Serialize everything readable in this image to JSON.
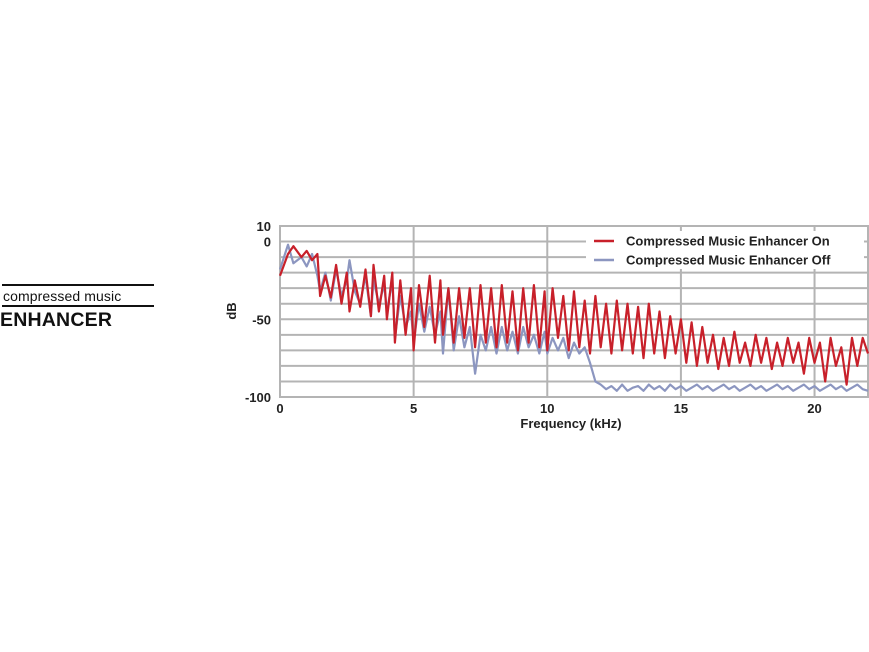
{
  "logo": {
    "line1": "compressed music",
    "line2": "ENHANCER"
  },
  "colors": {
    "on": "#c8202a",
    "off": "#8c96c0",
    "grid": "#b4b4b4"
  },
  "chart_data": {
    "type": "line",
    "title": "",
    "xlabel": "Frequency (kHz)",
    "ylabel": "dB",
    "xlim": [
      0,
      22
    ],
    "ylim": [
      -100,
      10
    ],
    "xticks": [
      0,
      5,
      10,
      15,
      20
    ],
    "yticks": [
      10,
      0,
      -50,
      -100
    ],
    "grid": true,
    "legend_position": "top-right",
    "series": [
      {
        "name": "Compressed Music Enhancer On",
        "color": "#c8202a",
        "x": [
          0,
          0.3,
          0.5,
          0.8,
          1.0,
          1.2,
          1.4,
          1.5,
          1.7,
          1.9,
          2.1,
          2.3,
          2.5,
          2.6,
          2.8,
          3.0,
          3.2,
          3.4,
          3.5,
          3.7,
          3.9,
          4.0,
          4.2,
          4.3,
          4.5,
          4.7,
          4.9,
          5.0,
          5.2,
          5.4,
          5.6,
          5.8,
          6.0,
          6.1,
          6.3,
          6.5,
          6.7,
          6.9,
          7.1,
          7.3,
          7.5,
          7.7,
          7.9,
          8.1,
          8.3,
          8.5,
          8.7,
          8.9,
          9.1,
          9.3,
          9.5,
          9.7,
          9.9,
          10.0,
          10.2,
          10.4,
          10.6,
          10.8,
          11.0,
          11.2,
          11.4,
          11.6,
          11.8,
          12.0,
          12.2,
          12.4,
          12.6,
          12.8,
          13.0,
          13.2,
          13.4,
          13.6,
          13.8,
          14.0,
          14.2,
          14.4,
          14.6,
          14.8,
          15.0,
          15.2,
          15.4,
          15.6,
          15.8,
          16.0,
          16.2,
          16.4,
          16.6,
          16.8,
          17.0,
          17.2,
          17.4,
          17.6,
          17.8,
          18.0,
          18.2,
          18.4,
          18.6,
          18.8,
          19.0,
          19.2,
          19.4,
          19.6,
          19.8,
          20.0,
          20.2,
          20.4,
          20.6,
          20.8,
          21.0,
          21.2,
          21.4,
          21.6,
          21.8,
          22.0
        ],
        "y": [
          -22,
          -8,
          -3,
          -10,
          -6,
          -12,
          -8,
          -35,
          -22,
          -36,
          -15,
          -40,
          -20,
          -45,
          -25,
          -42,
          -18,
          -48,
          -15,
          -45,
          -22,
          -50,
          -20,
          -65,
          -25,
          -60,
          -30,
          -70,
          -28,
          -55,
          -22,
          -65,
          -25,
          -60,
          -30,
          -65,
          -30,
          -62,
          -30,
          -68,
          -28,
          -65,
          -30,
          -68,
          -28,
          -65,
          -32,
          -70,
          -30,
          -65,
          -28,
          -68,
          -32,
          -70,
          -30,
          -62,
          -35,
          -70,
          -32,
          -68,
          -38,
          -72,
          -35,
          -68,
          -40,
          -72,
          -38,
          -70,
          -40,
          -72,
          -42,
          -75,
          -40,
          -72,
          -45,
          -75,
          -48,
          -72,
          -50,
          -78,
          -52,
          -80,
          -55,
          -78,
          -60,
          -82,
          -62,
          -80,
          -58,
          -78,
          -65,
          -80,
          -60,
          -78,
          -62,
          -82,
          -65,
          -80,
          -62,
          -78,
          -65,
          -85,
          -62,
          -78,
          -65,
          -90,
          -62,
          -80,
          -68,
          -92,
          -62,
          -80,
          -62,
          -72
        ]
      },
      {
        "name": "Compressed Music Enhancer Off",
        "color": "#8c96c0",
        "x": [
          0,
          0.3,
          0.5,
          0.8,
          1.0,
          1.2,
          1.4,
          1.5,
          1.7,
          1.9,
          2.1,
          2.3,
          2.5,
          2.6,
          2.8,
          3.0,
          3.2,
          3.4,
          3.5,
          3.7,
          3.9,
          4.0,
          4.2,
          4.3,
          4.5,
          4.7,
          4.9,
          5.0,
          5.2,
          5.4,
          5.6,
          5.8,
          6.0,
          6.1,
          6.3,
          6.5,
          6.7,
          6.9,
          7.1,
          7.3,
          7.5,
          7.7,
          7.9,
          8.1,
          8.3,
          8.5,
          8.7,
          8.9,
          9.1,
          9.3,
          9.5,
          9.7,
          9.9,
          10.0,
          10.2,
          10.4,
          10.6,
          10.8,
          11.0,
          11.2,
          11.4,
          11.6,
          11.8,
          12.0,
          12.2,
          12.4,
          12.6,
          12.8,
          13.0,
          13.2,
          13.4,
          13.6,
          13.8,
          14.0,
          14.2,
          14.4,
          14.6,
          14.8,
          15.0,
          15.2,
          15.4,
          15.6,
          15.8,
          16.0,
          16.2,
          16.4,
          16.6,
          16.8,
          17.0,
          17.2,
          17.4,
          17.6,
          17.8,
          18.0,
          18.2,
          18.4,
          18.6,
          18.8,
          19.0,
          19.2,
          19.4,
          19.6,
          19.8,
          20.0,
          20.2,
          20.4,
          20.6,
          20.8,
          21.0,
          21.2,
          21.4,
          21.6,
          21.8,
          22.0
        ],
        "y": [
          -18,
          -2,
          -14,
          -10,
          -16,
          -8,
          -22,
          -32,
          -20,
          -38,
          -18,
          -35,
          -25,
          -12,
          -32,
          -40,
          -22,
          -48,
          -25,
          -40,
          -28,
          -45,
          -25,
          -62,
          -35,
          -55,
          -45,
          -65,
          -40,
          -58,
          -42,
          -60,
          -45,
          -72,
          -30,
          -70,
          -48,
          -68,
          -55,
          -85,
          -60,
          -70,
          -55,
          -72,
          -55,
          -70,
          -58,
          -72,
          -55,
          -68,
          -60,
          -72,
          -58,
          -72,
          -62,
          -70,
          -62,
          -75,
          -65,
          -72,
          -68,
          -78,
          -90,
          -92,
          -95,
          -93,
          -96,
          -92,
          -96,
          -94,
          -93,
          -96,
          -92,
          -95,
          -93,
          -96,
          -92,
          -95,
          -93,
          -96,
          -94,
          -92,
          -95,
          -93,
          -96,
          -94,
          -92,
          -95,
          -93,
          -96,
          -94,
          -92,
          -95,
          -93,
          -96,
          -94,
          -92,
          -95,
          -93,
          -96,
          -94,
          -92,
          -95,
          -93,
          -96,
          -94,
          -92,
          -95,
          -93,
          -96,
          -94,
          -92,
          -95,
          -96
        ]
      }
    ]
  }
}
